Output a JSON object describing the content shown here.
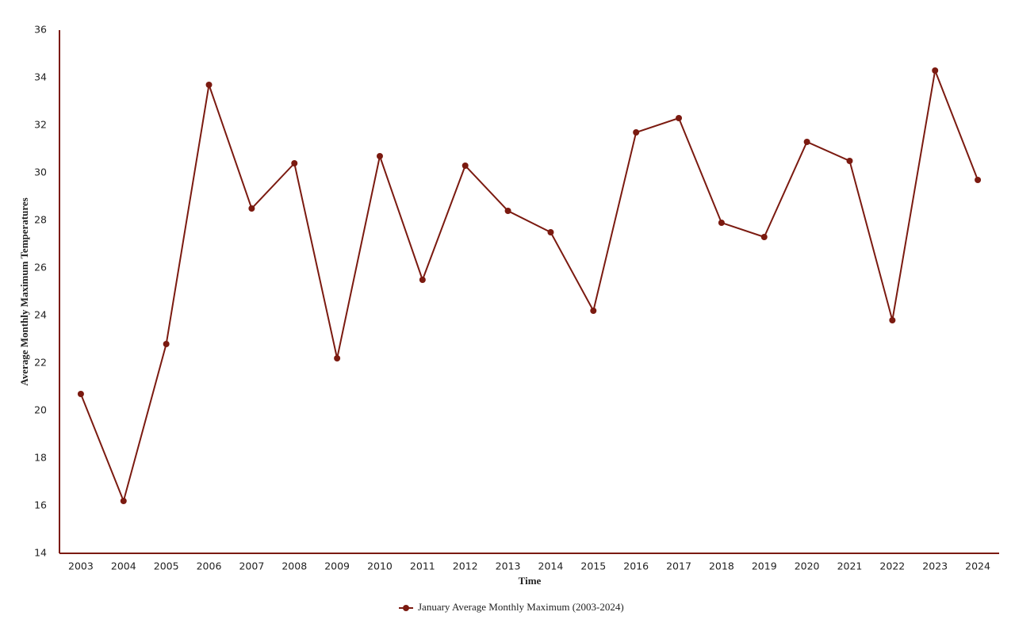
{
  "chart_data": {
    "type": "line",
    "x_label": "Time",
    "y_label": "Average Monthly Maximum Temperatures",
    "categories": [
      "2003",
      "2004",
      "2005",
      "2006",
      "2007",
      "2008",
      "2009",
      "2010",
      "2011",
      "2012",
      "2013",
      "2014",
      "2015",
      "2016",
      "2017",
      "2018",
      "2019",
      "2020",
      "2021",
      "2022",
      "2023",
      "2024"
    ],
    "series": [
      {
        "name": "January Average Monthly Maximum (2003-2024)",
        "color": "#7b1a10",
        "values": [
          20.7,
          16.2,
          22.8,
          33.7,
          28.5,
          30.4,
          22.2,
          30.7,
          25.5,
          30.3,
          28.4,
          27.5,
          24.2,
          31.7,
          32.3,
          27.9,
          27.3,
          31.3,
          30.5,
          23.8,
          34.3,
          29.7
        ]
      }
    ],
    "ylim": [
      14,
      36
    ],
    "yticks": [
      14,
      16,
      18,
      20,
      22,
      24,
      26,
      28,
      30,
      32,
      34,
      36
    ],
    "grid": false,
    "legend": "bottom"
  }
}
